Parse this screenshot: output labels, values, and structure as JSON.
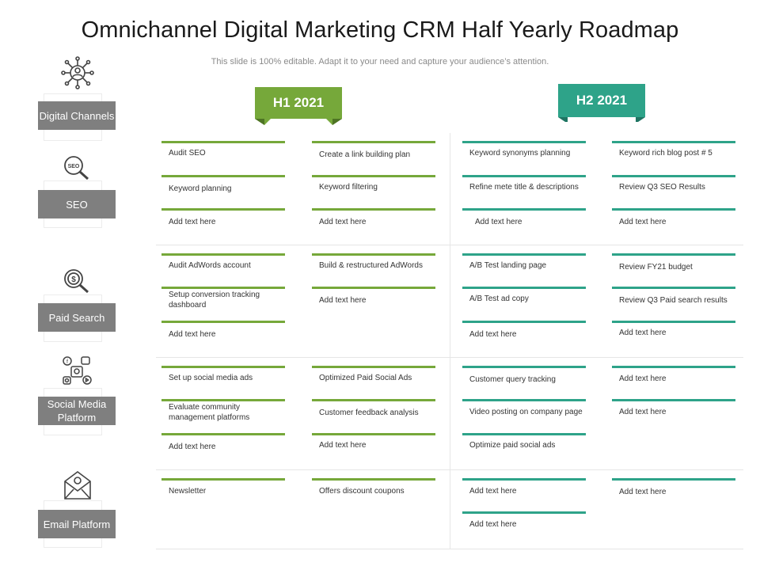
{
  "title": "Omnichannel Digital Marketing CRM Half Yearly Roadmap",
  "subtitle": "This slide is 100% editable. Adapt it to your need and capture your audience’s attention.",
  "colors": {
    "h1_green": "#76a83a",
    "h2_teal": "#2ea389",
    "label_gray": "#7f7f7f"
  },
  "periods": [
    {
      "label": "H1 2021",
      "color": "#76a83a"
    },
    {
      "label": "H2 2021",
      "color": "#2ea389"
    }
  ],
  "channels": [
    {
      "label": "Digital Channels",
      "icon": "network-icon",
      "columns": [
        [
          "Audit SEO",
          "Keyword planning",
          "Add text here"
        ],
        [
          "Create a link building plan",
          "Keyword filtering",
          "Add text here"
        ],
        [
          "Keyword synonyms planning",
          "Refine mete title & descriptions",
          "Add text here"
        ],
        [
          "Keyword rich blog post # 5",
          "Review Q3 SEO Results",
          "Add text here"
        ]
      ]
    },
    {
      "label": "SEO",
      "icon": "seo-magnifier-icon",
      "columns": [
        [
          "Audit AdWords account",
          "Setup conversion tracking dashboard",
          "Add text here"
        ],
        [
          "Build & restructured AdWords",
          "Add text here"
        ],
        [
          "A/B Test landing page",
          "A/B Test ad copy",
          "Add text here"
        ],
        [
          "Review FY21 budget",
          "Review Q3 Paid search results",
          "Add text here"
        ]
      ]
    },
    {
      "label": "Paid Search",
      "icon": "dollar-magnifier-icon",
      "columns": [
        [
          "Set up social media ads",
          "Evaluate community management platforms",
          "Add text here"
        ],
        [
          "Optimized Paid Social Ads",
          "Customer feedback analysis",
          "Add text here"
        ],
        [
          "Customer query tracking",
          "Video posting on company page",
          "Optimize paid social ads"
        ],
        [
          "Add text here",
          "Add text here"
        ]
      ]
    },
    {
      "label": "Social Media Platform",
      "icon": "social-media-icon",
      "columns": [
        [
          "Newsletter"
        ],
        [
          "Offers discount coupons"
        ],
        [
          "Add text here",
          "Add text here"
        ],
        [
          "Add text here"
        ]
      ]
    },
    {
      "label": "Email Platform",
      "icon": "email-envelope-icon",
      "columns": []
    }
  ]
}
